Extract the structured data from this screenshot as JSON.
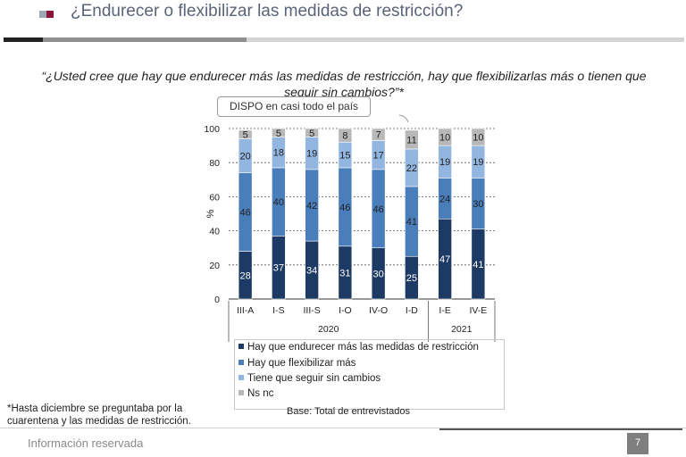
{
  "header": {
    "title": "¿Endurecer o flexibilizar las medidas de restricción?"
  },
  "question": "“¿Usted cree que hay que endurecer más las medidas de restricción, hay que flexibilizarlas más o tienen que seguir sin cambios?”*",
  "callout": "DISPO en casi todo el país",
  "colors": {
    "endurecer": "#1c3a63",
    "flexibilizar": "#4a7ebb",
    "sin_cambios": "#93b6e0",
    "ns_nc": "#b8b8b8",
    "brand": "#8b1538"
  },
  "chart_data": {
    "type": "bar",
    "stacked": true,
    "categories": [
      "III-A",
      "I-S",
      "III-S",
      "I-O",
      "IV-O",
      "I-D",
      "I-E",
      "IV-E"
    ],
    "year_groups": [
      {
        "label": "2020",
        "categories": [
          "III-A",
          "I-S",
          "III-S",
          "I-O",
          "IV-O",
          "I-D"
        ]
      },
      {
        "label": "2021",
        "categories": [
          "I-E",
          "IV-E"
        ]
      }
    ],
    "series": [
      {
        "name": "Hay que endurecer más las medidas de restricción",
        "values": [
          28,
          37,
          34,
          31,
          30,
          25,
          47,
          41
        ]
      },
      {
        "name": "Hay que flexibilizar más",
        "values": [
          46,
          40,
          42,
          46,
          46,
          41,
          24,
          30
        ]
      },
      {
        "name": "Tiene que seguir sin cambios",
        "values": [
          20,
          18,
          19,
          15,
          17,
          22,
          19,
          19
        ]
      },
      {
        "name": "Ns nc",
        "values": [
          5,
          5,
          5,
          8,
          7,
          11,
          10,
          10
        ]
      }
    ],
    "ylabel": "%",
    "ylim": [
      0,
      100
    ],
    "yticks": [
      0,
      20,
      40,
      60,
      80,
      100
    ],
    "grid": true,
    "legend_position": "bottom"
  },
  "footnote": "*Hasta diciembre se preguntaba por la cuarentena y las medidas de restricción.",
  "base_note": "Base: Total de entrevistados",
  "footer": {
    "label": "Información reservada",
    "page_number": "7"
  }
}
